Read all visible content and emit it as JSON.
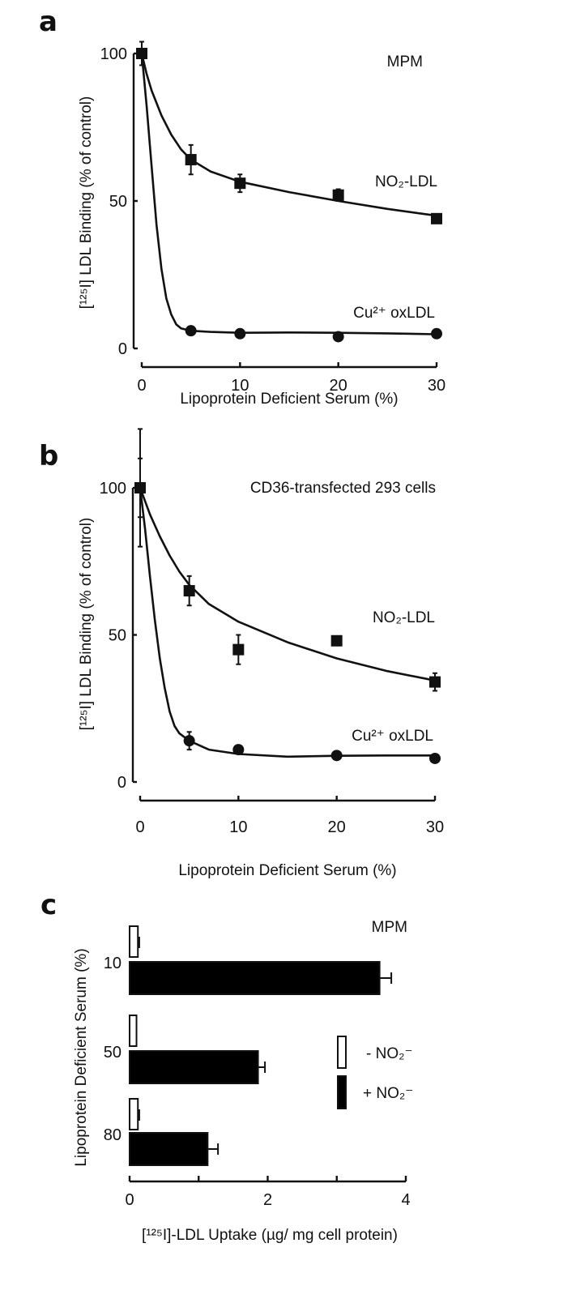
{
  "chart_data": [
    {
      "panel": "a",
      "type": "scatter",
      "annotation": "MPM",
      "xlabel": "Lipoprotein Deficient Serum (%)",
      "ylabel": "[¹²⁵I] LDL Binding (% of control)",
      "xlim": [
        0,
        30
      ],
      "ylim": [
        0,
        100
      ],
      "xticks": [
        "0",
        "10",
        "20",
        "30"
      ],
      "yticks": [
        "0",
        "50",
        "100"
      ],
      "grid": false,
      "series": [
        {
          "name": "NO₂-LDL",
          "marker": "square",
          "x": [
            0,
            5,
            10,
            20,
            30
          ],
          "y": [
            100,
            64,
            56,
            52,
            44
          ],
          "err": [
            4,
            5,
            3,
            2,
            0
          ]
        },
        {
          "name": "Cu²⁺ oxLDL",
          "marker": "circle",
          "x": [
            0,
            5,
            10,
            20,
            30
          ],
          "y": [
            100,
            6,
            5,
            4,
            5
          ],
          "err": [
            0,
            0,
            0,
            0,
            0
          ]
        }
      ]
    },
    {
      "panel": "b",
      "type": "scatter",
      "annotation": "CD36-transfected 293 cells",
      "xlabel": "Lipoprotein Deficient Serum (%)",
      "ylabel": "[¹²⁵I] LDL Binding (% of control)",
      "xlim": [
        0,
        30
      ],
      "ylim": [
        0,
        100
      ],
      "xticks": [
        "0",
        "10",
        "20",
        "30"
      ],
      "yticks": [
        "0",
        "50",
        "100"
      ],
      "grid": false,
      "series": [
        {
          "name": "NO₂-LDL",
          "marker": "square",
          "x": [
            0,
            5,
            10,
            20,
            30
          ],
          "y": [
            100,
            65,
            45,
            48,
            34
          ],
          "err": [
            20,
            5,
            5,
            1,
            3
          ]
        },
        {
          "name": "Cu²⁺ oxLDL",
          "marker": "circle",
          "x": [
            0,
            5,
            10,
            20,
            30
          ],
          "y": [
            100,
            14,
            11,
            9,
            8
          ],
          "err": [
            10,
            3,
            1,
            0,
            0
          ]
        }
      ]
    },
    {
      "panel": "c",
      "type": "bar",
      "orientation": "horizontal",
      "annotation": "MPM",
      "xlabel": "[¹²⁵I]-LDL Uptake (µg/ mg cell protein)",
      "ylabel": "Lipoprotein Deficient Serum (%)",
      "xlim": [
        0,
        4
      ],
      "xticks": [
        "0",
        "2",
        "4"
      ],
      "categories": [
        "10",
        "50",
        "80"
      ],
      "legend_position": "right",
      "series": [
        {
          "name": "- NO₂⁻",
          "color": "#ffffff",
          "values": [
            0.12,
            0.1,
            0.12
          ],
          "err": [
            0.02,
            0,
            0.02
          ]
        },
        {
          "name": "+ NO₂⁻",
          "color": "#000000",
          "values": [
            3.62,
            1.86,
            1.13
          ],
          "err": [
            0.17,
            0.1,
            0.15
          ]
        }
      ]
    }
  ],
  "panel_letters": [
    "a",
    "b",
    "c"
  ]
}
